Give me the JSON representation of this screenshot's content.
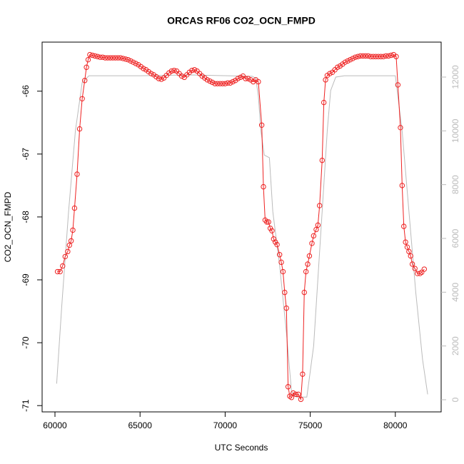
{
  "chart_data": {
    "type": "line",
    "title": "ORCAS RF06 CO2_OCN_FMPD",
    "xlabel": "UTC Seconds",
    "ylabel": "CO2_OCN_FMPD",
    "xlim": [
      59245,
      82693
    ],
    "xticks": [
      60000,
      65000,
      70000,
      75000,
      80000
    ],
    "ylim": [
      -71.1,
      -65.22
    ],
    "yticks": [
      -71,
      -70,
      -69,
      -68,
      -67,
      -66
    ],
    "y2lim": [
      -451,
      13300
    ],
    "y2ticks": [
      0,
      2000,
      4000,
      6000,
      8000,
      10000,
      12000
    ],
    "y2tick_color": "#bbbbbb",
    "series": [
      {
        "color": "#bbbbbb",
        "axis": "y2",
        "markers": false,
        "x": [
          60100,
          60400,
          60800,
          61200,
          61600,
          62000,
          65000,
          68000,
          71600,
          71800,
          71950,
          72100,
          72300,
          72600,
          72800,
          73200,
          73600,
          73900,
          74200,
          74800,
          75200,
          75600,
          76000,
          76200,
          76500,
          77000,
          80000,
          80400,
          80800,
          81200,
          81600,
          81900
        ],
        "values": [
          600,
          3500,
          7000,
          10000,
          11800,
          12050,
          12050,
          12080,
          12030,
          11950,
          11300,
          10000,
          9100,
          9000,
          7000,
          5000,
          2500,
          300,
          100,
          100,
          2000,
          6000,
          10000,
          11500,
          12000,
          12050,
          12050,
          10000,
          7000,
          4000,
          1500,
          200
        ]
      },
      {
        "color": "#ee2222",
        "axis": "y",
        "markers": true,
        "x": [
          60150,
          60300,
          60450,
          60600,
          60750,
          60850,
          60950,
          61050,
          61150,
          61300,
          61450,
          61600,
          61750,
          61850,
          61950,
          62050,
          62200,
          62350,
          62500,
          62650,
          62800,
          62950,
          63100,
          63250,
          63400,
          63550,
          63700,
          63850,
          64000,
          64150,
          64300,
          64450,
          64600,
          64750,
          64900,
          65050,
          65200,
          65350,
          65500,
          65650,
          65800,
          65950,
          66100,
          66250,
          66400,
          66550,
          66700,
          66850,
          67000,
          67150,
          67300,
          67450,
          67600,
          67750,
          67900,
          68050,
          68200,
          68350,
          68500,
          68650,
          68800,
          68950,
          69100,
          69250,
          69400,
          69550,
          69700,
          69850,
          70000,
          70150,
          70300,
          70450,
          70600,
          70750,
          70900,
          71050,
          71200,
          71350,
          71500,
          71650,
          71800,
          71950,
          72150,
          72250,
          72350,
          72450,
          72550,
          72650,
          72750,
          72850,
          72950,
          73050,
          73200,
          73300,
          73400,
          73500,
          73600,
          73700,
          73800,
          73900,
          74000,
          74150,
          74300,
          74450,
          74550,
          74650,
          74750,
          74850,
          74950,
          75100,
          75200,
          75350,
          75450,
          75550,
          75700,
          75800,
          75900,
          76000,
          76150,
          76300,
          76450,
          76600,
          76750,
          76900,
          77050,
          77200,
          77350,
          77500,
          77650,
          77800,
          77950,
          78100,
          78250,
          78400,
          78550,
          78700,
          78850,
          79000,
          79150,
          79300,
          79450,
          79600,
          79750,
          79900,
          80050,
          80150,
          80300,
          80400,
          80500,
          80600,
          80700,
          80800,
          80900,
          81000,
          81150,
          81300,
          81450,
          81550,
          81700
        ],
        "values": [
          -68.87,
          -68.87,
          -68.78,
          -68.63,
          -68.55,
          -68.45,
          -68.38,
          -68.21,
          -67.86,
          -67.32,
          -66.6,
          -66.12,
          -65.83,
          -65.62,
          -65.5,
          -65.42,
          -65.43,
          -65.44,
          -65.45,
          -65.46,
          -65.46,
          -65.47,
          -65.47,
          -65.47,
          -65.47,
          -65.47,
          -65.47,
          -65.47,
          -65.48,
          -65.49,
          -65.5,
          -65.52,
          -65.54,
          -65.56,
          -65.58,
          -65.61,
          -65.64,
          -65.66,
          -65.69,
          -65.72,
          -65.74,
          -65.77,
          -65.8,
          -65.81,
          -65.79,
          -65.75,
          -65.71,
          -65.68,
          -65.67,
          -65.68,
          -65.72,
          -65.76,
          -65.78,
          -65.74,
          -65.7,
          -65.67,
          -65.66,
          -65.68,
          -65.72,
          -65.76,
          -65.79,
          -65.82,
          -65.84,
          -65.86,
          -65.88,
          -65.88,
          -65.88,
          -65.88,
          -65.88,
          -65.87,
          -65.87,
          -65.85,
          -65.83,
          -65.8,
          -65.78,
          -65.76,
          -65.8,
          -65.8,
          -65.82,
          -65.85,
          -65.82,
          -65.85,
          -66.54,
          -67.52,
          -68.05,
          -68.08,
          -68.08,
          -68.18,
          -68.22,
          -68.35,
          -68.4,
          -68.44,
          -68.6,
          -68.72,
          -68.87,
          -69.2,
          -69.45,
          -70.7,
          -70.85,
          -70.87,
          -70.8,
          -70.82,
          -70.82,
          -70.9,
          -70.5,
          -69.2,
          -68.87,
          -68.75,
          -68.62,
          -68.42,
          -68.3,
          -68.2,
          -68.13,
          -67.82,
          -67.1,
          -66.18,
          -65.82,
          -65.75,
          -65.72,
          -65.7,
          -65.66,
          -65.62,
          -65.6,
          -65.57,
          -65.54,
          -65.52,
          -65.5,
          -65.48,
          -65.46,
          -65.45,
          -65.44,
          -65.44,
          -65.44,
          -65.44,
          -65.45,
          -65.45,
          -65.45,
          -65.45,
          -65.45,
          -65.45,
          -65.44,
          -65.44,
          -65.43,
          -65.42,
          -65.45,
          -65.9,
          -66.58,
          -67.5,
          -68.15,
          -68.4,
          -68.48,
          -68.55,
          -68.62,
          -68.75,
          -68.82,
          -68.9,
          -68.9,
          -68.88,
          -68.83
        ]
      }
    ]
  }
}
